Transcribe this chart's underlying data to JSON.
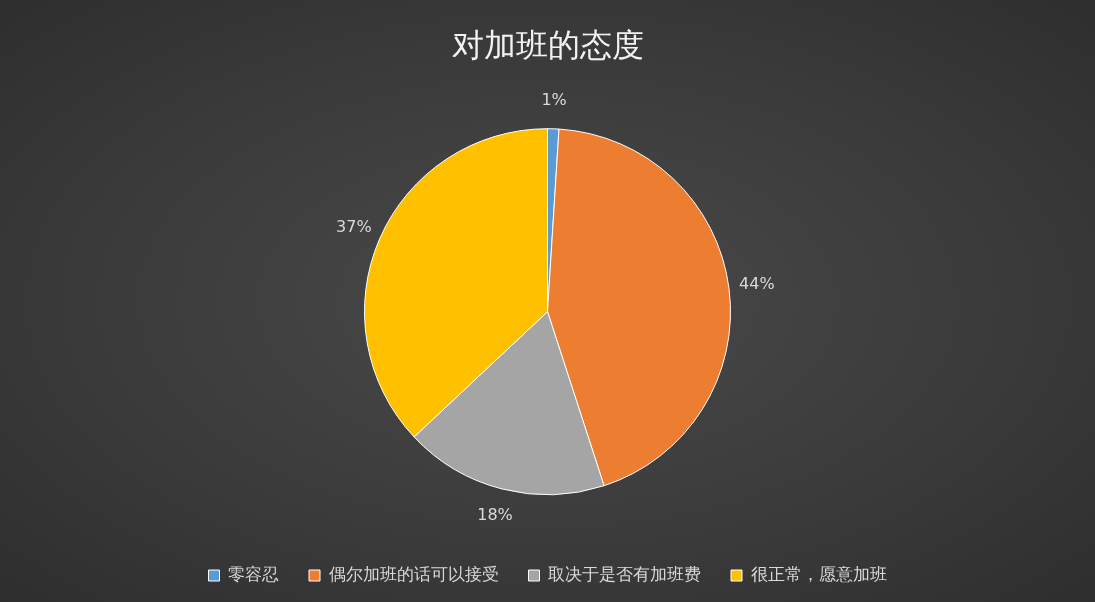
{
  "chart_data": {
    "type": "pie",
    "title": "对加班的态度",
    "categories": [
      "零容忍",
      "偶尔加班的话可以接受",
      "取决于是否有加班费",
      "很正常，愿意加班"
    ],
    "values": [
      1,
      44,
      18,
      37
    ],
    "colors": [
      "#5b9bd5",
      "#ed7d31",
      "#a5a5a5",
      "#ffc000"
    ],
    "value_labels": [
      "1%",
      "44%",
      "18%",
      "37%"
    ],
    "legend": "bottom"
  }
}
